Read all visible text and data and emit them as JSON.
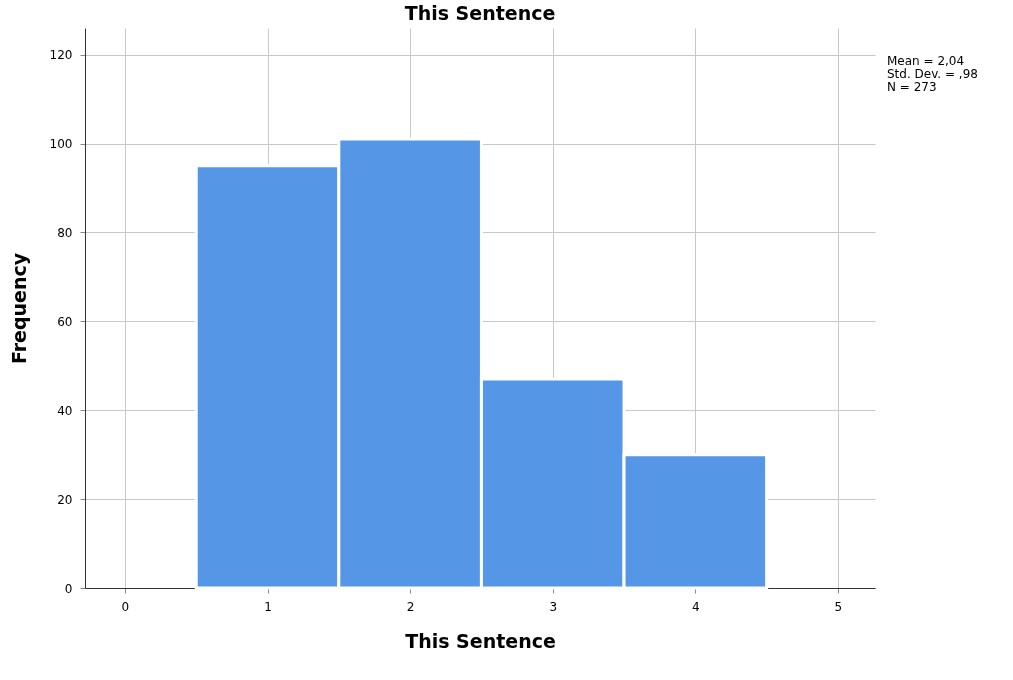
{
  "chart_data": {
    "type": "histogram",
    "title": "This Sentence",
    "xlabel": "This Sentence",
    "ylabel": "Frequency",
    "bins": [
      0.5,
      1.5,
      2.5,
      3.5,
      4.5
    ],
    "values": [
      95,
      101,
      47,
      30
    ],
    "color": "#5596e6",
    "xlim": [
      -0.28,
      5.26
    ],
    "xticks": [
      0,
      1,
      2,
      3,
      4,
      5
    ],
    "ylim": [
      0,
      126
    ],
    "yticks": [
      0,
      20,
      40,
      60,
      80,
      100,
      120
    ],
    "grid": true,
    "annotations": [
      "Mean = 2,04",
      "Std. Dev. = ,98",
      "N = 273"
    ]
  }
}
